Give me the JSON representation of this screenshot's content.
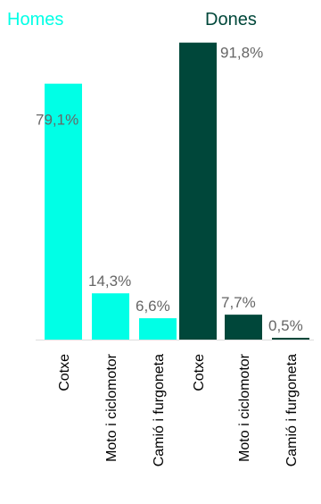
{
  "colors": {
    "homes": "#00FFE6",
    "dones": "#00473A",
    "value_text": "#666666",
    "axis": "#dddddd"
  },
  "chart_data": {
    "type": "bar",
    "ylim": [
      0,
      100
    ],
    "groups": [
      {
        "name": "Homes",
        "color": "#00FFE6",
        "categories": [
          "Cotxe",
          "Moto i ciclomotor",
          "Camió i furgoneta"
        ],
        "values": [
          79.1,
          14.3,
          6.6
        ],
        "labels": [
          "79,1%",
          "14,3%",
          "6,6%"
        ]
      },
      {
        "name": "Dones",
        "color": "#00473A",
        "categories": [
          "Cotxe",
          "Moto i ciclomotor",
          "Camió i furgoneta"
        ],
        "values": [
          91.8,
          7.7,
          0.5
        ],
        "labels": [
          "91,8%",
          "7,7%",
          "0,5%"
        ]
      }
    ]
  }
}
